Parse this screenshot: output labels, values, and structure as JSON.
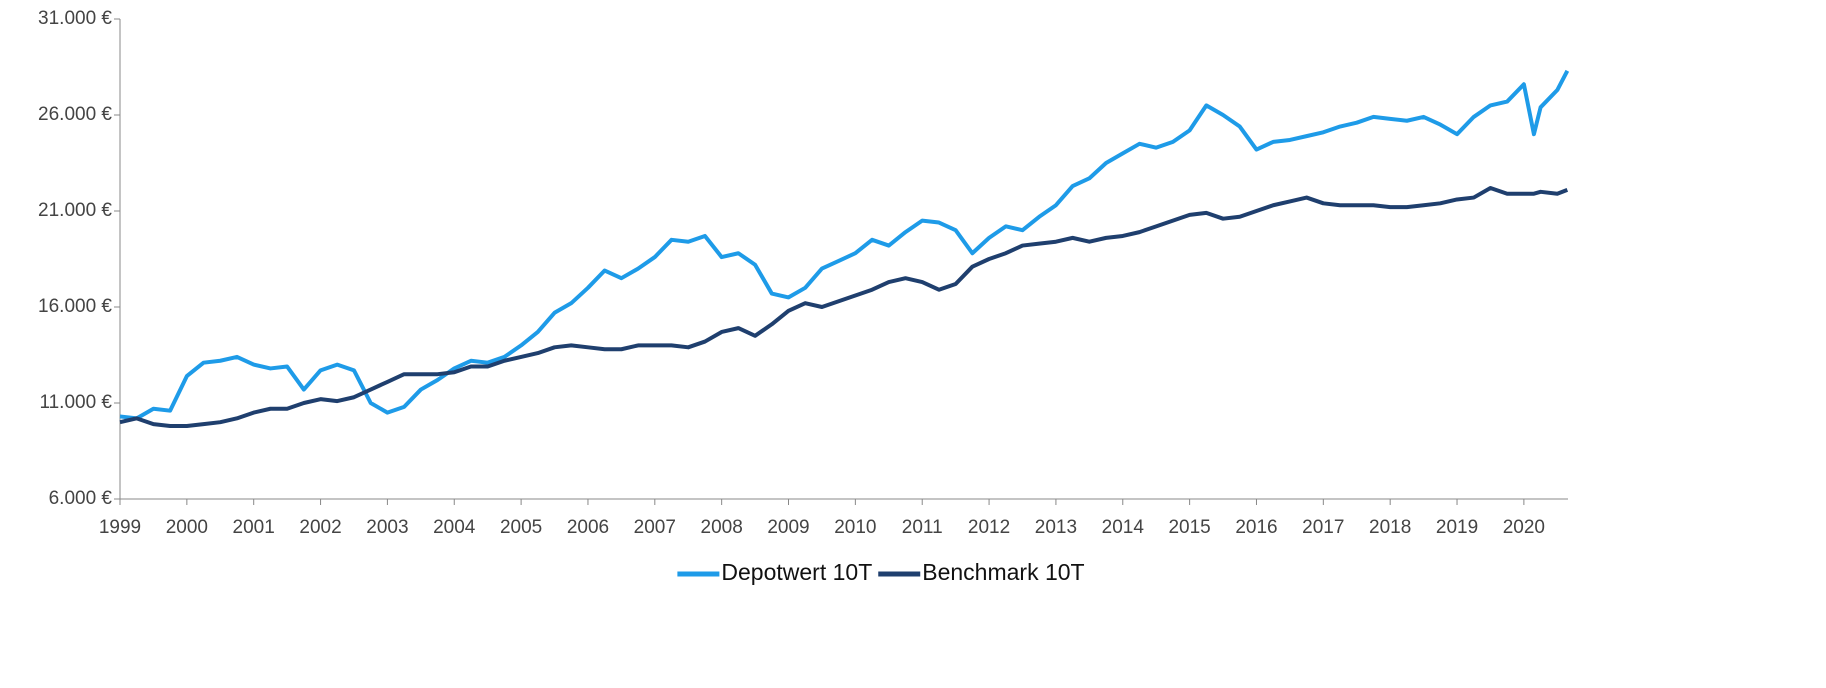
{
  "chart_data": {
    "type": "line",
    "x": [
      1999,
      1999.25,
      1999.5,
      1999.75,
      2000,
      2000.25,
      2000.5,
      2000.75,
      2001,
      2001.25,
      2001.5,
      2001.75,
      2002,
      2002.25,
      2002.5,
      2002.75,
      2003,
      2003.25,
      2003.5,
      2003.75,
      2004,
      2004.25,
      2004.5,
      2004.75,
      2005,
      2005.25,
      2005.5,
      2005.75,
      2006,
      2006.25,
      2006.5,
      2006.75,
      2007,
      2007.25,
      2007.5,
      2007.75,
      2008,
      2008.25,
      2008.5,
      2008.75,
      2009,
      2009.25,
      2009.5,
      2009.75,
      2010,
      2010.25,
      2010.5,
      2010.75,
      2011,
      2011.25,
      2011.5,
      2011.75,
      2012,
      2012.25,
      2012.5,
      2012.75,
      2013,
      2013.25,
      2013.5,
      2013.75,
      2014,
      2014.25,
      2014.5,
      2014.75,
      2015,
      2015.25,
      2015.5,
      2015.75,
      2016,
      2016.25,
      2016.5,
      2016.75,
      2017,
      2017.25,
      2017.5,
      2017.75,
      2018,
      2018.25,
      2018.5,
      2018.75,
      2019,
      2019.25,
      2019.5,
      2019.75,
      2020,
      2020.15,
      2020.25,
      2020.5,
      2020.65
    ],
    "series": [
      {
        "name": "Depotwert 10T",
        "color": "#1e9be8",
        "values": [
          10300,
          10200,
          10700,
          10600,
          12400,
          13100,
          13200,
          13400,
          13000,
          12800,
          12900,
          11700,
          12700,
          13000,
          12700,
          11000,
          10500,
          10800,
          11700,
          12200,
          12800,
          13200,
          13100,
          13400,
          14000,
          14700,
          15700,
          16200,
          17000,
          17900,
          17500,
          18000,
          18600,
          19500,
          19400,
          19700,
          18600,
          18800,
          18200,
          16700,
          16500,
          17000,
          18000,
          18400,
          18800,
          19500,
          19200,
          19900,
          20500,
          20400,
          20000,
          18800,
          19600,
          20200,
          20000,
          20700,
          21300,
          22300,
          22700,
          23500,
          24000,
          24500,
          24300,
          24600,
          25200,
          26500,
          26000,
          25400,
          24200,
          24600,
          24700,
          24900,
          25100,
          25400,
          25600,
          25900,
          25800,
          25700,
          25900,
          25500,
          25000,
          25900,
          26500,
          26700,
          27600,
          25000,
          26400,
          27300,
          28300
        ]
      },
      {
        "name": "Benchmark 10T",
        "color": "#1f3f6e",
        "values": [
          10000,
          10200,
          9900,
          9800,
          9800,
          9900,
          10000,
          10200,
          10500,
          10700,
          10700,
          11000,
          11200,
          11100,
          11300,
          11700,
          12100,
          12500,
          12500,
          12500,
          12600,
          12900,
          12900,
          13200,
          13400,
          13600,
          13900,
          14000,
          13900,
          13800,
          13800,
          14000,
          14000,
          14000,
          13900,
          14200,
          14700,
          14900,
          14500,
          15100,
          15800,
          16200,
          16000,
          16300,
          16600,
          16900,
          17300,
          17500,
          17300,
          16900,
          17200,
          18100,
          18500,
          18800,
          19200,
          19300,
          19400,
          19600,
          19400,
          19600,
          19700,
          19900,
          20200,
          20500,
          20800,
          20900,
          20600,
          20700,
          21000,
          21300,
          21500,
          21700,
          21400,
          21300,
          21300,
          21300,
          21200,
          21200,
          21300,
          21400,
          21600,
          21700,
          22200,
          21900,
          21900,
          21900,
          22000,
          21900,
          22100
        ]
      }
    ],
    "xlim": [
      1999,
      2020.66
    ],
    "xticks": [
      1999,
      2000,
      2001,
      2002,
      2003,
      2004,
      2005,
      2006,
      2007,
      2008,
      2009,
      2010,
      2011,
      2012,
      2013,
      2014,
      2015,
      2016,
      2017,
      2018,
      2019,
      2020
    ],
    "ylim": [
      6000,
      31000
    ],
    "yticks": [
      {
        "value": 6000,
        "label": "6.000 €"
      },
      {
        "value": 11000,
        "label": "11.000 €"
      },
      {
        "value": 16000,
        "label": "16.000 €"
      },
      {
        "value": 21000,
        "label": "21.000 €"
      },
      {
        "value": 26000,
        "label": "26.000 €"
      },
      {
        "value": 31000,
        "label": "31.000 €"
      }
    ],
    "grid": false,
    "legend": "bottom"
  }
}
